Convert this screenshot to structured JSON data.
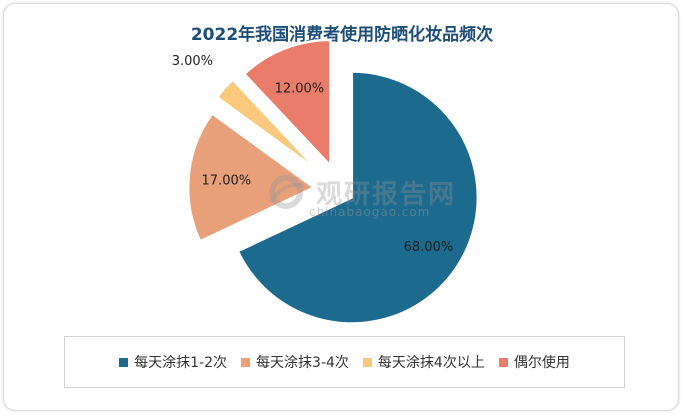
{
  "chart_data": {
    "type": "pie",
    "title": "2022年我国消费者使用防晒化妆品频次",
    "categories": [
      "每天涂抹1-2次",
      "每天涂抹3-4次",
      "每天涂抹4次以上",
      "偶尔使用"
    ],
    "values": [
      68.0,
      17.0,
      3.0,
      12.0
    ],
    "data_labels": [
      "68.00%",
      "17.00%",
      "3.00%",
      "12.00%"
    ],
    "colors": [
      "#1d6a8f",
      "#e8a07b",
      "#fbc97d",
      "#e97c6b"
    ],
    "legend": "bottom",
    "exploded": true
  },
  "watermark": {
    "text": "观研报告网",
    "url_text": "chinabaogao.com"
  }
}
